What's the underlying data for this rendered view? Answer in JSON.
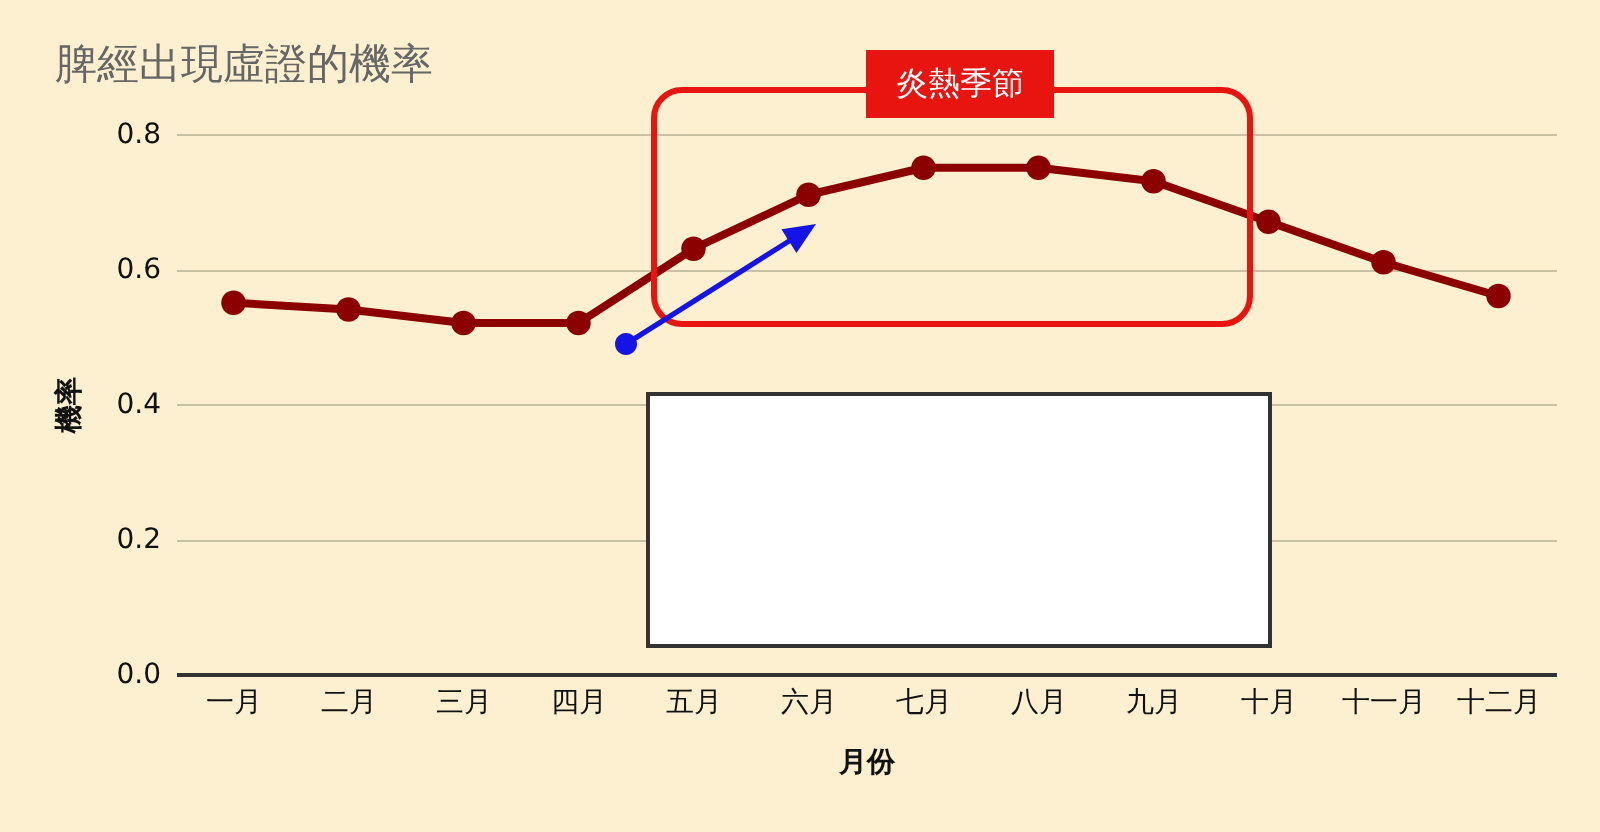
{
  "chart_data": {
    "type": "line",
    "title": "脾經出現虛證的機率",
    "xlabel": "月份",
    "ylabel": "機率",
    "categories": [
      "一月",
      "二月",
      "三月",
      "四月",
      "五月",
      "六月",
      "七月",
      "八月",
      "九月",
      "十月",
      "十一月",
      "十二月"
    ],
    "series": [
      {
        "color": "#8b0000",
        "values": [
          0.55,
          0.54,
          0.52,
          0.52,
          0.63,
          0.71,
          0.75,
          0.75,
          0.73,
          0.67,
          0.61,
          0.56
        ]
      }
    ],
    "ylim": [
      0,
      0.8
    ],
    "yticks": [
      {
        "value": 0,
        "label": "0.0"
      },
      0.2,
      0.4,
      0.6,
      0.8
    ],
    "grid": "y",
    "marker": "circle",
    "line_style": "solid",
    "annotations": [
      "炎熱季節"
    ]
  }
}
